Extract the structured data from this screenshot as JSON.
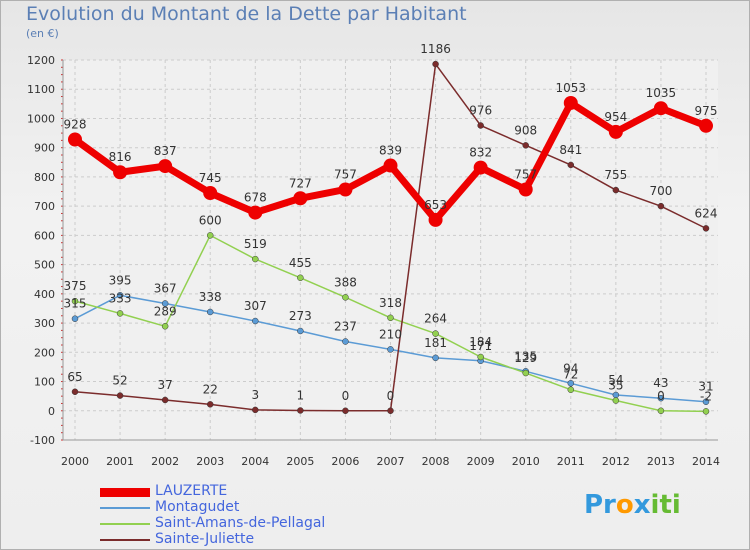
{
  "chart_data": {
    "type": "line",
    "title": "Evolution du Montant de la Dette par Habitant",
    "subtitle": "(en €)",
    "x": [
      "2000",
      "2001",
      "2002",
      "2003",
      "2004",
      "2005",
      "2006",
      "2007",
      "2008",
      "2009",
      "2010",
      "2011",
      "2012",
      "2013",
      "2014"
    ],
    "ylim": [
      -100,
      1200
    ],
    "yticks": [
      -100,
      0,
      100,
      200,
      300,
      400,
      500,
      600,
      700,
      800,
      900,
      1000,
      1100,
      1200
    ],
    "grid": true,
    "legend_position": "bottom-left",
    "series": [
      {
        "name": "LAUZERTE",
        "color": "#ee0000",
        "values": [
          928,
          816,
          837,
          745,
          678,
          727,
          757,
          839,
          653,
          832,
          757,
          1053,
          954,
          1035,
          975
        ]
      },
      {
        "name": "Montagudet",
        "color": "#5b9bd5",
        "values": [
          315,
          395,
          367,
          338,
          307,
          273,
          237,
          210,
          181,
          171,
          135,
          94,
          54,
          43,
          31
        ]
      },
      {
        "name": "Saint-Amans-de-Pellagal",
        "color": "#92d050",
        "values": [
          375,
          333,
          289,
          600,
          519,
          455,
          388,
          318,
          264,
          184,
          129,
          72,
          35,
          0,
          -2
        ]
      },
      {
        "name": "Sainte-Juliette",
        "color": "#7b2c2c",
        "values": [
          65,
          52,
          37,
          22,
          3,
          1,
          0,
          0,
          1186,
          976,
          908,
          841,
          755,
          700,
          624
        ]
      }
    ],
    "data_labels": [
      [
        "928",
        "816",
        "837",
        "745",
        "678",
        "727",
        "757",
        "839",
        "653",
        "832",
        "757",
        "1053",
        "954",
        "1035",
        "975"
      ],
      [
        "315",
        "395",
        "367",
        "338",
        "307",
        "273",
        "237",
        "210",
        "181",
        "171",
        "135",
        "94",
        "54",
        "43",
        "31"
      ],
      [
        "375",
        "333",
        "289",
        "600",
        "519",
        "455",
        "388",
        "318",
        "264",
        "184",
        "129",
        "72",
        "35",
        "0",
        "-2"
      ],
      [
        "65",
        "52",
        "37",
        "22",
        "3",
        "1",
        "0",
        "0",
        "1186",
        "976",
        "908",
        "841",
        "755",
        "700",
        "624"
      ]
    ]
  },
  "logo": {
    "text_p": "Pr",
    "text_o": "o",
    "text_x": "x",
    "text_i": "iti",
    "colors": [
      "#3399dd",
      "#ff9900",
      "#3399dd",
      "#66bb33"
    ]
  }
}
